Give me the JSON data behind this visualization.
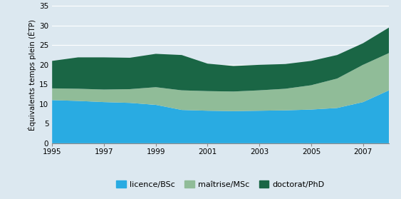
{
  "years": [
    1995,
    1996,
    1997,
    1998,
    1999,
    2000,
    2001,
    2002,
    2003,
    2004,
    2005,
    2006,
    2007,
    2008
  ],
  "licence": [
    11.0,
    10.8,
    10.5,
    10.3,
    9.8,
    8.5,
    8.3,
    8.2,
    8.3,
    8.4,
    8.6,
    9.0,
    10.5,
    13.5
  ],
  "maitrise": [
    3.0,
    3.1,
    3.2,
    3.5,
    4.5,
    5.0,
    5.0,
    5.0,
    5.2,
    5.5,
    6.2,
    7.5,
    9.5,
    9.5
  ],
  "doctorat": [
    7.0,
    8.0,
    8.2,
    8.0,
    8.5,
    9.0,
    7.0,
    6.5,
    6.5,
    6.3,
    6.2,
    6.0,
    5.5,
    6.5
  ],
  "color_licence": "#29abe2",
  "color_maitrise": "#90bc98",
  "color_doctorat": "#1a6645",
  "background_color": "#dce8f0",
  "ylabel": "Équivalents temps plein (ÉTP)",
  "ylim": [
    0,
    35
  ],
  "yticks": [
    0,
    5,
    10,
    15,
    20,
    25,
    30,
    35
  ],
  "xticks": [
    1995,
    1997,
    1999,
    2001,
    2003,
    2005,
    2007
  ],
  "legend_labels": [
    "licence/BSc",
    "maîtrise/MSc",
    "doctorat/PhD"
  ]
}
